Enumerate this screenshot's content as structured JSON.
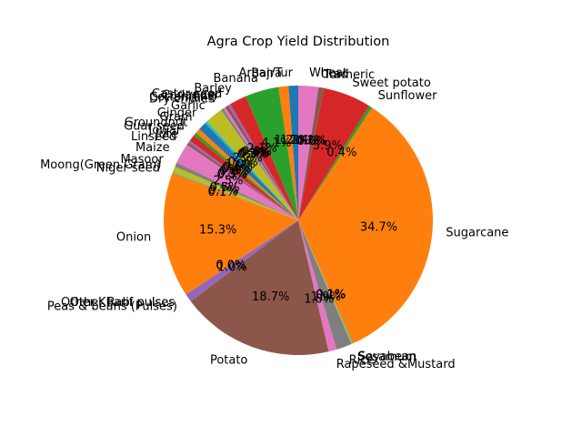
{
  "chart_data": {
    "type": "pie",
    "title": "Agra Crop Yield Distribution",
    "start_angle_deg": 90,
    "direction": "counterclockwise",
    "slices": [
      {
        "label": "Arhar/Tur",
        "value": 1.2,
        "pct_label": "1.2%",
        "color": "#1f77b4"
      },
      {
        "label": "Bajra",
        "value": 1.2,
        "pct_label": "1.2%",
        "color": "#ff7f0e"
      },
      {
        "label": "Banana",
        "value": 4.1,
        "pct_label": "4.1%",
        "color": "#2ca02c"
      },
      {
        "label": "Barley",
        "value": 2.1,
        "pct_label": "2.1%",
        "color": "#d62728"
      },
      {
        "label": "Castor seed",
        "value": 0.3,
        "pct_label": "0.3%",
        "color": "#9467bd"
      },
      {
        "label": "Coriander",
        "value": 0.4,
        "pct_label": "0.4%",
        "color": "#8c564b"
      },
      {
        "label": "Cotton(lint)",
        "value": 0.3,
        "pct_label": "0.3%",
        "color": "#e377c2"
      },
      {
        "label": "Dry chillies",
        "value": 0.3,
        "pct_label": "0.3%",
        "color": "#7f7f7f"
      },
      {
        "label": "Garlic",
        "value": 2.2,
        "pct_label": "2.2%",
        "color": "#bcbd22"
      },
      {
        "label": "Ginger",
        "value": 0.3,
        "pct_label": "0.3%",
        "color": "#17becf"
      },
      {
        "label": "Gram",
        "value": 1.0,
        "pct_label": "1.0%",
        "color": "#1f77b4"
      },
      {
        "label": "Groundnut",
        "value": 0.6,
        "pct_label": "0.6%",
        "color": "#ff7f0e"
      },
      {
        "label": "Guar seed",
        "value": 0.4,
        "pct_label": "0.4%",
        "color": "#2ca02c"
      },
      {
        "label": "Jowar",
        "value": 0.8,
        "pct_label": "0.8%",
        "color": "#d62728"
      },
      {
        "label": "Jute",
        "value": 0.3,
        "pct_label": "0.3%",
        "color": "#9467bd"
      },
      {
        "label": "Linseed",
        "value": 0.3,
        "pct_label": "0.3%",
        "color": "#8c564b"
      },
      {
        "label": "Maize",
        "value": 2.5,
        "pct_label": "2.5%",
        "color": "#e377c2"
      },
      {
        "label": "Masoor",
        "value": 0.5,
        "pct_label": "0.5%",
        "color": "#7f7f7f"
      },
      {
        "label": "Moong(Green Gram)",
        "value": 0.7,
        "pct_label": "0.7%",
        "color": "#bcbd22"
      },
      {
        "label": "Niger seed",
        "value": 0.1,
        "pct_label": "0.1%",
        "color": "#17becf"
      },
      {
        "label": "Onion",
        "value": 15.3,
        "pct_label": "15.3%",
        "color": "#ff7f0e"
      },
      {
        "label": "Other Kharif pulses",
        "value": 0.0,
        "pct_label": "0.0%",
        "color": "#17becf"
      },
      {
        "label": "Other Rabi pulses",
        "value": 0.0,
        "pct_label": "0.0%",
        "color": "#1f77b4"
      },
      {
        "label": "Peas & beans (Pulses)",
        "value": 1.0,
        "pct_label": "1.0%",
        "color": "#9467bd"
      },
      {
        "label": "Potato",
        "value": 18.7,
        "pct_label": "18.7%",
        "color": "#8c564b"
      },
      {
        "label": "Rapeseed &Mustard",
        "value": 1.0,
        "pct_label": "1.0%",
        "color": "#e377c2"
      },
      {
        "label": "Rice",
        "value": 1.9,
        "pct_label": "1.9%",
        "color": "#7f7f7f"
      },
      {
        "label": "Sesamum",
        "value": 0.1,
        "pct_label": "0.1%",
        "color": "#bcbd22"
      },
      {
        "label": "Soyabean",
        "value": 0.1,
        "pct_label": "0.1%",
        "color": "#17becf"
      },
      {
        "label": "Sugarcane",
        "value": 34.7,
        "pct_label": "34.7%",
        "color": "#ff7f0e"
      },
      {
        "label": "Sunflower",
        "value": 0.4,
        "pct_label": "0.4%",
        "color": "#2ca02c"
      },
      {
        "label": "Sweet potato",
        "value": 5.9,
        "pct_label": "5.9%",
        "color": "#d62728"
      },
      {
        "label": "Turmeric",
        "value": 0.6,
        "pct_label": "0.6%",
        "color": "#8c564b"
      },
      {
        "label": "Urad",
        "value": 0.1,
        "pct_label": "0.1%",
        "color": "#9467bd"
      },
      {
        "label": "Wheat",
        "value": 2.4,
        "pct_label": "2.4%",
        "color": "#e377c2"
      }
    ]
  }
}
